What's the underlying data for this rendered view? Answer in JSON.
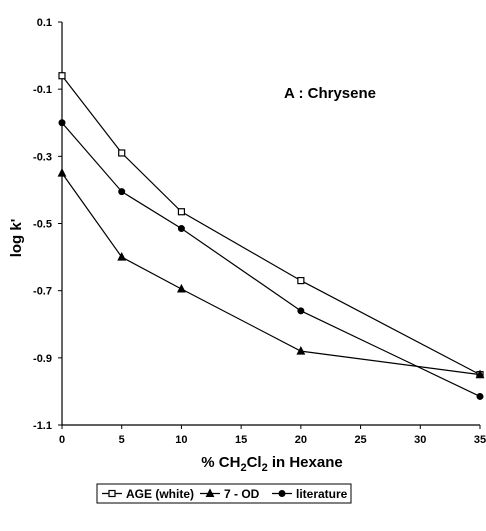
{
  "chart_data": {
    "type": "line",
    "xlabel": "% CH2Cl2 in Hexane",
    "ylabel": "log k'",
    "annotation": "A : Chrysene",
    "x": [
      0,
      5,
      10,
      20,
      35
    ],
    "xlim": [
      0,
      35
    ],
    "ylim": [
      -1.1,
      0.1
    ],
    "xticks": [
      "0",
      "5",
      "10",
      "15",
      "20",
      "25",
      "30",
      "35"
    ],
    "yticks": [
      "0.1",
      "-0.1",
      "-0.3",
      "-0.5",
      "-0.7",
      "-0.9",
      "-1.1"
    ],
    "grid": false,
    "legend_position": "bottom",
    "series": [
      {
        "name": "AGE (white)",
        "marker": "open-square",
        "values": [
          -0.06,
          -0.29,
          -0.465,
          -0.67,
          -0.95
        ]
      },
      {
        "name": "7 - OD",
        "marker": "triangle",
        "values": [
          -0.35,
          -0.6,
          -0.695,
          -0.88,
          -0.95
        ]
      },
      {
        "name": "literature",
        "marker": "circle",
        "values": [
          -0.2,
          -0.405,
          -0.515,
          -0.76,
          -1.015
        ]
      }
    ]
  }
}
